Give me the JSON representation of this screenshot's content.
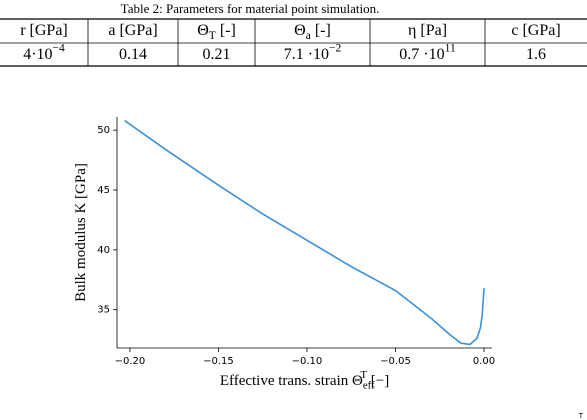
{
  "caption": "Table 2: Parameters for material point simulation.",
  "table": {
    "header": [
      {
        "base": "r [GPa]"
      },
      {
        "base": "a",
        "rest": " [GPa]"
      },
      {
        "base": "Θ",
        "sub": "T",
        "rest": " [-]"
      },
      {
        "base": "Θ",
        "sub": "a",
        "rest": " [-]"
      },
      {
        "base": "η",
        "rest": " [Pa]"
      },
      {
        "base": "c",
        "rest": " [GPa]"
      }
    ],
    "rows": [
      [
        {
          "base": "4·10",
          "sup": "−4"
        },
        {
          "base": "0.14"
        },
        {
          "base": "0.21"
        },
        {
          "base": "7.1 ·10",
          "sup": "−2"
        },
        {
          "base": "0.7 ·10",
          "sup": "11"
        },
        {
          "base": "1.6"
        }
      ]
    ]
  },
  "chart_data": {
    "type": "line",
    "xlabel": {
      "base": "Effective trans. strain  Θ",
      "sub": "eff",
      "sup": "T",
      "rest": "  [−]"
    },
    "ylabel": {
      "base": "Bulk modulus  K [GPa]"
    },
    "x": [
      -0.203,
      -0.18,
      -0.15,
      -0.125,
      -0.1,
      -0.075,
      -0.05,
      -0.03,
      -0.02,
      -0.013,
      -0.008,
      -0.004,
      -0.002,
      -0.001,
      0.0
    ],
    "values": [
      50.8,
      48.4,
      45.4,
      43.0,
      40.8,
      38.6,
      36.6,
      34.3,
      33.0,
      32.2,
      32.1,
      32.6,
      33.5,
      34.6,
      36.8
    ],
    "color": "#3d8fd6",
    "xlim": [
      -0.2073,
      0.0045
    ],
    "ylim": [
      31.8,
      51.1
    ],
    "xticks": [
      {
        "value": -0.2,
        "label": "−0.20"
      },
      {
        "value": -0.15,
        "label": "−0.15"
      },
      {
        "value": -0.1,
        "label": "−0.10"
      },
      {
        "value": -0.05,
        "label": "−0.05"
      },
      {
        "value": 0,
        "label": "0.00"
      }
    ],
    "yticks": [
      35,
      40,
      45,
      50
    ]
  },
  "fragment": "T"
}
